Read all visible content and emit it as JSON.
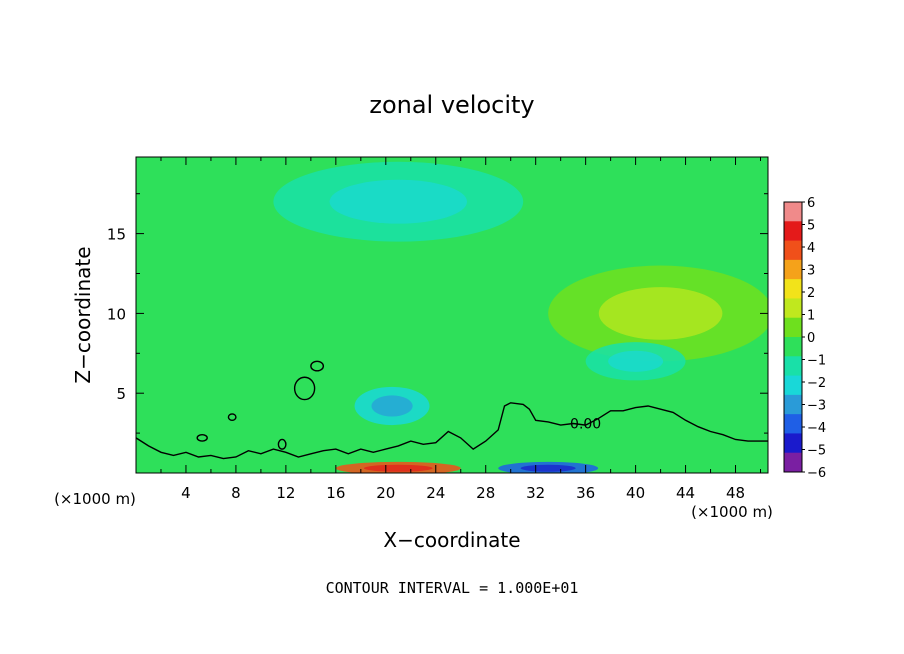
{
  "chart_data": {
    "type": "heatmap",
    "title": "zonal velocity",
    "xlabel": "X−coordinate",
    "ylabel": "Z−coordinate",
    "x_unit": "(×1000 m)",
    "x_unit_right": "(×1000 m)",
    "x_ticks": [
      4,
      8,
      12,
      16,
      20,
      24,
      28,
      32,
      36,
      40,
      44,
      48
    ],
    "y_ticks": [
      5,
      10,
      15
    ],
    "xlim": [
      0,
      50.6
    ],
    "ylim": [
      0,
      19.8
    ],
    "grid": false,
    "colorbar": {
      "levels": [
        -6,
        -5,
        -4,
        -3,
        -2,
        -1,
        0,
        1,
        2,
        3,
        4,
        5,
        6
      ],
      "tick_labels": [
        "6",
        "5",
        "4",
        "3",
        "2",
        "1",
        "0",
        "−1",
        "−2",
        "−3",
        "−4",
        "−5",
        "−6"
      ],
      "colors": [
        "#7a1fa2",
        "#1a1acc",
        "#1f5fe6",
        "#2a9bd8",
        "#19d8d8",
        "#19e0a8",
        "#2ee05a",
        "#6ee01e",
        "#c0e81e",
        "#f2e31a",
        "#f5a21a",
        "#f0501a",
        "#e41a1a",
        "#f08a8a"
      ]
    },
    "contour_label": "0.00",
    "contour_interval_text": "CONTOUR INTERVAL = 1.000E+01",
    "background_value": -1,
    "features": [
      {
        "name": "upper weak easterly",
        "x": 21,
        "z": 17,
        "rx": 10,
        "rz": 2.5,
        "value": -1.5
      },
      {
        "name": "mid-level westerly",
        "x": 42,
        "z": 10,
        "rx": 9,
        "rz": 3,
        "value": 0.3
      },
      {
        "name": "low-level easterly core",
        "x": 20.5,
        "z": 4.2,
        "rx": 3,
        "rz": 1.2,
        "value": -3
      },
      {
        "name": "easterly patch",
        "x": 40,
        "z": 7,
        "rx": 4,
        "rz": 1.2,
        "value": -2
      },
      {
        "name": "surface westerly jet",
        "x": 21,
        "z": 0.3,
        "rx": 5,
        "rz": 0.4,
        "value": 4.5
      },
      {
        "name": "surface easterly jet",
        "x": 33,
        "z": 0.3,
        "rx": 4,
        "rz": 0.4,
        "value": -4.5
      }
    ],
    "zero_contour": [
      [
        0,
        2.2
      ],
      [
        1,
        1.7
      ],
      [
        2,
        1.3
      ],
      [
        3,
        1.1
      ],
      [
        4,
        1.3
      ],
      [
        5,
        1.0
      ],
      [
        6,
        1.1
      ],
      [
        7,
        0.9
      ],
      [
        8,
        1.0
      ],
      [
        9,
        1.4
      ],
      [
        10,
        1.2
      ],
      [
        11,
        1.5
      ],
      [
        12,
        1.3
      ],
      [
        13,
        1.0
      ],
      [
        14,
        1.2
      ],
      [
        15,
        1.4
      ],
      [
        16,
        1.5
      ],
      [
        17,
        1.2
      ],
      [
        18,
        1.5
      ],
      [
        19,
        1.3
      ],
      [
        20,
        1.5
      ],
      [
        21,
        1.7
      ],
      [
        22,
        2.0
      ],
      [
        23,
        1.8
      ],
      [
        24,
        1.9
      ],
      [
        25,
        2.6
      ],
      [
        26,
        2.2
      ],
      [
        27,
        1.5
      ],
      [
        28,
        2.0
      ],
      [
        29,
        2.7
      ],
      [
        29.5,
        4.2
      ],
      [
        30,
        4.4
      ],
      [
        31,
        4.3
      ],
      [
        31.5,
        4.0
      ],
      [
        32,
        3.3
      ],
      [
        33,
        3.2
      ],
      [
        34,
        3.0
      ],
      [
        35,
        3.1
      ],
      [
        36,
        3.0
      ],
      [
        37,
        3.4
      ],
      [
        38,
        3.9
      ],
      [
        39,
        3.9
      ],
      [
        40,
        4.1
      ],
      [
        41,
        4.2
      ],
      [
        42,
        4.0
      ],
      [
        43,
        3.8
      ],
      [
        44,
        3.3
      ],
      [
        45,
        2.9
      ],
      [
        46,
        2.6
      ],
      [
        47,
        2.4
      ],
      [
        48,
        2.1
      ],
      [
        49,
        2.0
      ],
      [
        50.6,
        2.0
      ]
    ],
    "closed_contours": [
      {
        "center": [
          13.5,
          5.3
        ],
        "rx": 0.8,
        "rz": 0.7
      },
      {
        "center": [
          14.5,
          6.7
        ],
        "rx": 0.5,
        "rz": 0.3
      },
      {
        "center": [
          7.7,
          3.5
        ],
        "rx": 0.3,
        "rz": 0.2
      },
      {
        "center": [
          5.3,
          2.2
        ],
        "rx": 0.4,
        "rz": 0.2
      },
      {
        "center": [
          11.7,
          1.8
        ],
        "rx": 0.3,
        "rz": 0.3
      }
    ]
  }
}
